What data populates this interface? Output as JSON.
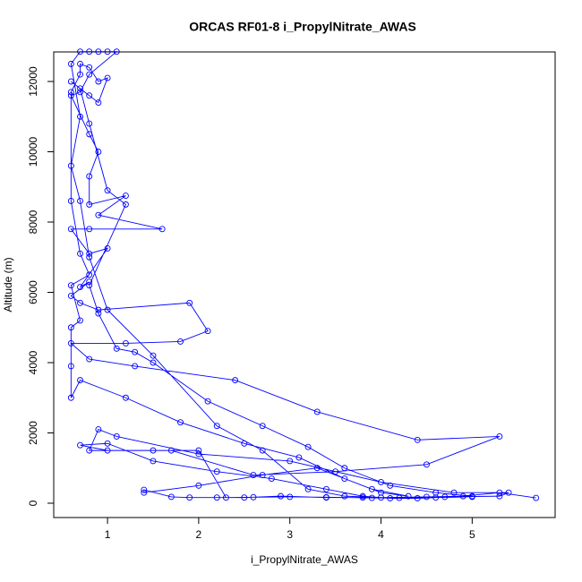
{
  "chart_data": {
    "type": "line",
    "title": "ORCAS RF01-8 i_PropylNitrate_AWAS",
    "x_label": "i_PropylNitrate_AWAS",
    "y_label": "Altitude (m)",
    "color": "#0000ff",
    "markers": true,
    "xlim": [
      0.41,
      5.91
    ],
    "ylim": [
      -408,
      12841
    ],
    "xticks": [
      1,
      2,
      3,
      4,
      5
    ],
    "yticks": [
      0,
      2000,
      4000,
      6000,
      8000,
      10000,
      12000
    ],
    "x": [
      5.7,
      5.3,
      4.9,
      4.5,
      4.0,
      3.6,
      3.2,
      2.7,
      2.2,
      1.5,
      1.0,
      0.8,
      0.7,
      0.6,
      0.7,
      0.6,
      0.7,
      0.8,
      0.9,
      1.0,
      1.1,
      0.8,
      0.7,
      0.6,
      0.8,
      0.9,
      0.8,
      0.8,
      1.2,
      0.9,
      1.6,
      0.8,
      0.6,
      0.8,
      1.0,
      0.7,
      0.8,
      0.6,
      0.7,
      0.9,
      1.9,
      2.1,
      1.8,
      1.2,
      0.6,
      0.8,
      1.3,
      2.4,
      3.3,
      4.4,
      5.3,
      4.5,
      3.5,
      2.6,
      1.7,
      0.8,
      0.9,
      1.1,
      2.0,
      3.0,
      4.0,
      4.8,
      5.4,
      5.3,
      4.7,
      4.2,
      3.8,
      3.4,
      2.9,
      2.5,
      2.2,
      1.9,
      1.7,
      1.4,
      1.4,
      2.0,
      2.7,
      3.3,
      3.9,
      4.3,
      4.0,
      3.6,
      3.1,
      2.5,
      1.8,
      1.2,
      0.7,
      0.6,
      0.6,
      0.6,
      0.7,
      0.6,
      0.8,
      0.7,
      0.6,
      0.6,
      0.7,
      0.7,
      0.8,
      0.9,
      1.0,
      0.9,
      0.8,
      0.6,
      0.7,
      0.8,
      1.0,
      1.2,
      0.8,
      0.9,
      1.1,
      1.3,
      1.5,
      2.1,
      2.7,
      3.2,
      3.6,
      4.1,
      4.6,
      5.0,
      4.4,
      3.9,
      3.4,
      3.0,
      2.6,
      2.3,
      2.0,
      1.5,
      1.0,
      0.7,
      1.0,
      1.5,
      2.2,
      2.8,
      3.4,
      3.8,
      4.1,
      4.6,
      5.0
    ],
    "values": [
      150,
      300,
      200,
      180,
      160,
      200,
      400,
      1500,
      2200,
      4200,
      5500,
      7000,
      8600,
      9600,
      11000,
      12500,
      12850,
      12850,
      12850,
      12850,
      12850,
      12200,
      11700,
      11600,
      10500,
      10000,
      9300,
      8500,
      8750,
      8200,
      7800,
      7800,
      7800,
      7100,
      7250,
      6150,
      6300,
      5900,
      5700,
      5500,
      5700,
      4900,
      4600,
      4550,
      4550,
      4100,
      3900,
      3500,
      2600,
      1800,
      1900,
      1100,
      900,
      800,
      1500,
      1500,
      2100,
      1900,
      1400,
      1200,
      600,
      300,
      300,
      200,
      180,
      150,
      160,
      160,
      200,
      160,
      160,
      160,
      180,
      380,
      300,
      500,
      800,
      1000,
      400,
      200,
      300,
      700,
      1300,
      1700,
      2300,
      3000,
      3500,
      3000,
      3900,
      5000,
      5200,
      6200,
      6500,
      7100,
      8600,
      11700,
      12200,
      12500,
      12400,
      12000,
      12100,
      11400,
      11600,
      12000,
      11800,
      10800,
      8900,
      8500,
      6200,
      5400,
      4400,
      4300,
      4000,
      2900,
      2200,
      1600,
      1000,
      500,
      300,
      200,
      140,
      150,
      170,
      180,
      170,
      160,
      1500,
      1500,
      1500,
      1650,
      1700,
      1200,
      900,
      700,
      400,
      200,
      140,
      160,
      180
    ]
  }
}
